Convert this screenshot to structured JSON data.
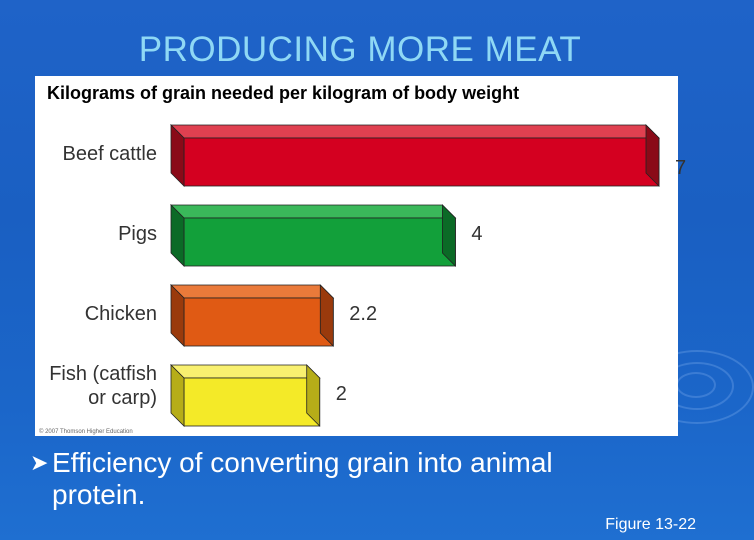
{
  "slide": {
    "title": "PRODUCING MORE MEAT",
    "bullet": "Efficiency of converting grain into animal protein.",
    "figure_label": "Figure 13-22"
  },
  "chart_data": {
    "type": "bar",
    "orientation": "horizontal",
    "title": "Kilograms of grain needed per kilogram of body weight",
    "categories": [
      "Beef cattle",
      "Pigs",
      "Chicken",
      "Fish (catfish or carp)"
    ],
    "values": [
      7,
      4,
      2.2,
      2
    ],
    "value_labels": [
      "7",
      "4",
      "2.2",
      "2"
    ],
    "colors": [
      "#d40020",
      "#12a03a",
      "#e05a14",
      "#f4ea28"
    ],
    "side_colors": [
      "#8a0a18",
      "#0b6a26",
      "#9a3a0c",
      "#b6ad18"
    ],
    "top_colors": [
      "#e04050",
      "#3ab85a",
      "#ea7a3a",
      "#f8f070"
    ],
    "copyright": "© 2007 Thomson Higher Education",
    "xlim": [
      0,
      7
    ]
  }
}
